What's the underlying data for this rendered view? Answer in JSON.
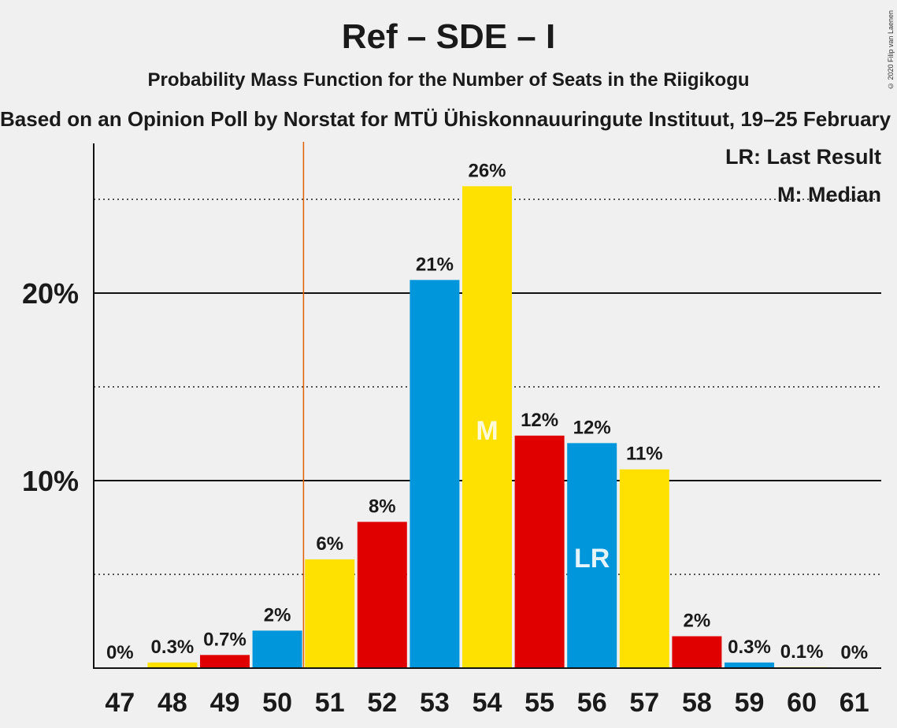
{
  "title": "Ref – SDE – I",
  "subtitle": "Probability Mass Function for the Number of Seats in the Riigikogu",
  "source": "Based on an Opinion Poll by Norstat for MTÜ Ühiskonnauuringute Instituut, 19–25 February 2020",
  "copyright": "© 2020 Filip van Laenen",
  "legend": {
    "last_result": "LR: Last Result",
    "median": "M: Median"
  },
  "colors": {
    "blue": "#0096dc",
    "yellow": "#ffe100",
    "red": "#e10000",
    "last_result_line": "#e06000"
  },
  "chart_data": {
    "type": "bar",
    "categories": [
      "47",
      "48",
      "49",
      "50",
      "51",
      "52",
      "53",
      "54",
      "55",
      "56",
      "57",
      "58",
      "59",
      "60",
      "61"
    ],
    "values": [
      0,
      0.3,
      0.7,
      2,
      5.8,
      7.8,
      20.7,
      25.7,
      12.4,
      12.0,
      10.6,
      1.7,
      0.3,
      0.05,
      0
    ],
    "data_labels": [
      "0%",
      "0.3%",
      "0.7%",
      "2%",
      "6%",
      "8%",
      "21%",
      "26%",
      "12%",
      "12%",
      "11%",
      "2%",
      "0.3%",
      "0.1%",
      "0%"
    ],
    "bar_colors": [
      "blue",
      "yellow",
      "red",
      "blue",
      "yellow",
      "red",
      "blue",
      "yellow",
      "red",
      "blue",
      "yellow",
      "red",
      "blue",
      "yellow",
      "red"
    ],
    "yticks": [
      {
        "value": 10,
        "label": "10%"
      },
      {
        "value": 20,
        "label": "20%"
      }
    ],
    "minor_gridlines": [
      5,
      15,
      25
    ],
    "ylim": [
      0,
      28
    ],
    "last_result_seat": "50.5",
    "median_seat": "54",
    "median_marker": "M",
    "last_result_bar_seat": "56",
    "last_result_marker": "LR"
  }
}
